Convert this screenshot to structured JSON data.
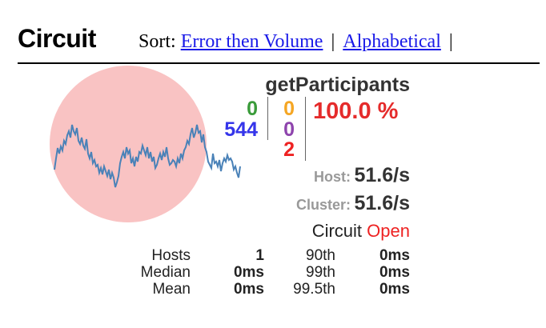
{
  "header": {
    "title": "Circuit",
    "sort_label": "Sort:",
    "sort_options": [
      "Error then Volume",
      "Alphabetical"
    ],
    "separator": "|"
  },
  "circuit": {
    "name": "getParticipants",
    "counts": {
      "success": "0",
      "short_circuited": "544",
      "timeout": "0",
      "rejected": "0",
      "failure": "2"
    },
    "error_percentage": "100.0 %",
    "host_label": "Host:",
    "host_rate": "51.6/s",
    "cluster_label": "Cluster:",
    "cluster_rate": "51.6/s",
    "status_label": "Circuit",
    "status_value": "Open",
    "stats": [
      {
        "label": "Hosts",
        "value": "1",
        "pct": "90th",
        "pct_value": "0ms"
      },
      {
        "label": "Median",
        "value": "0ms",
        "pct": "99th",
        "pct_value": "0ms"
      },
      {
        "label": "Mean",
        "value": "0ms",
        "pct": "99.5th",
        "pct_value": "0ms"
      }
    ]
  },
  "colors": {
    "bubble": "#f9c3c3",
    "sparkline": "#4a82b8",
    "success": "#3a9b3a",
    "short_circuited": "#3535ea",
    "timeout": "#f5a623",
    "rejected": "#8e44ad",
    "failure": "#ee2222"
  }
}
